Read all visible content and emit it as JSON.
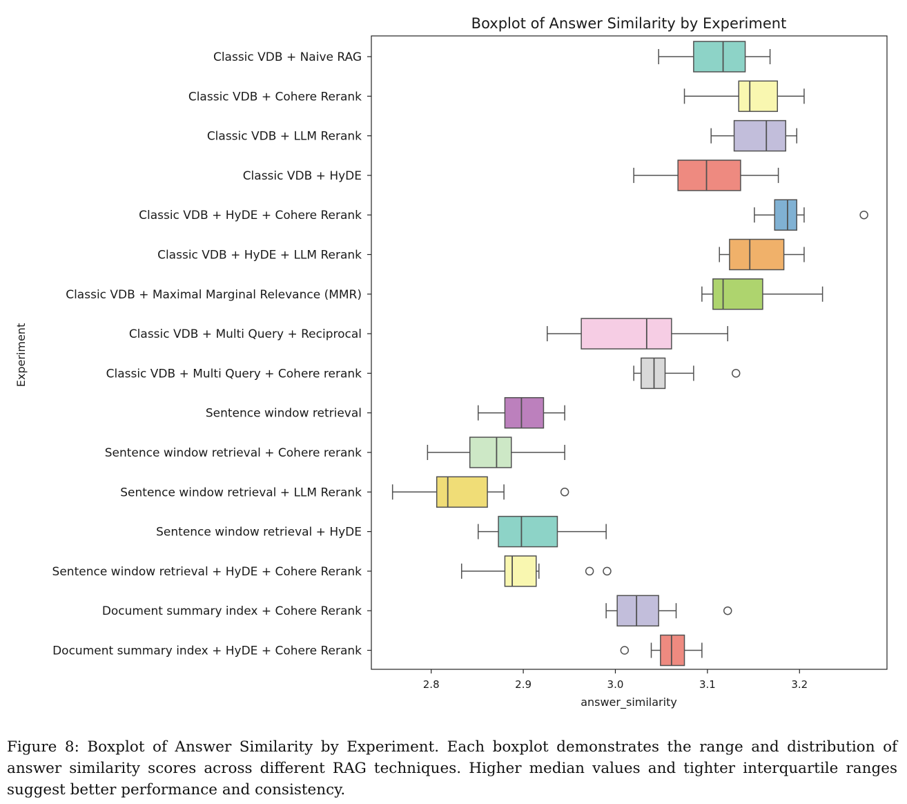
{
  "chart_data": {
    "type": "boxplot",
    "orientation": "horizontal",
    "title": "Boxplot of Answer Similarity by Experiment",
    "xlabel": "answer_similarity",
    "ylabel": "Experiment",
    "xlim": [
      2.735,
      3.295
    ],
    "xticks": [
      2.8,
      2.9,
      3.0,
      3.1,
      3.2
    ],
    "xtick_labels": [
      "2.8",
      "2.9",
      "3.0",
      "3.1",
      "3.2"
    ],
    "grid": false,
    "categories": [
      {
        "label": "Classic VDB + Naive RAG",
        "whisker_low": 3.047,
        "q1": 3.085,
        "median": 3.117,
        "q3": 3.141,
        "whisker_high": 3.168,
        "outliers": [],
        "color": "#8dd3c7"
      },
      {
        "label": "Classic VDB + Cohere Rerank",
        "whisker_low": 3.075,
        "q1": 3.134,
        "median": 3.146,
        "q3": 3.176,
        "whisker_high": 3.205,
        "outliers": [],
        "color": "#f9f7b0"
      },
      {
        "label": "Classic VDB + LLM Rerank",
        "whisker_low": 3.104,
        "q1": 3.129,
        "median": 3.164,
        "q3": 3.185,
        "whisker_high": 3.197,
        "outliers": [],
        "color": "#c2bedb"
      },
      {
        "label": "Classic VDB + HyDE",
        "whisker_low": 3.02,
        "q1": 3.068,
        "median": 3.099,
        "q3": 3.136,
        "whisker_high": 3.177,
        "outliers": [],
        "color": "#ee8a80"
      },
      {
        "label": "Classic VDB + HyDE + Cohere Rerank",
        "whisker_low": 3.151,
        "q1": 3.173,
        "median": 3.187,
        "q3": 3.197,
        "whisker_high": 3.205,
        "outliers": [
          3.27
        ],
        "color": "#80b1d3"
      },
      {
        "label": "Classic VDB + HyDE + LLM Rerank",
        "whisker_low": 3.113,
        "q1": 3.124,
        "median": 3.146,
        "q3": 3.183,
        "whisker_high": 3.205,
        "outliers": [],
        "color": "#f0b16a"
      },
      {
        "label": "Classic VDB + Maximal Marginal Relevance (MMR)",
        "whisker_low": 3.094,
        "q1": 3.106,
        "median": 3.117,
        "q3": 3.16,
        "whisker_high": 3.225,
        "outliers": [],
        "color": "#aed46e"
      },
      {
        "label": "Classic VDB + Multi Query + Reciprocal",
        "whisker_low": 2.926,
        "q1": 2.963,
        "median": 3.034,
        "q3": 3.061,
        "whisker_high": 3.122,
        "outliers": [],
        "color": "#f6cde4"
      },
      {
        "label": "Classic VDB + Multi Query + Cohere rerank",
        "whisker_low": 3.02,
        "q1": 3.028,
        "median": 3.042,
        "q3": 3.054,
        "whisker_high": 3.085,
        "outliers": [
          3.131
        ],
        "color": "#d9d9d9"
      },
      {
        "label": "Sentence window retrieval",
        "whisker_low": 2.851,
        "q1": 2.88,
        "median": 2.898,
        "q3": 2.922,
        "whisker_high": 2.945,
        "outliers": [],
        "color": "#bc80bd"
      },
      {
        "label": "Sentence window retrieval + Cohere rerank",
        "whisker_low": 2.796,
        "q1": 2.842,
        "median": 2.871,
        "q3": 2.887,
        "whisker_high": 2.945,
        "outliers": [],
        "color": "#cde8c6"
      },
      {
        "label": "Sentence window retrieval + LLM Rerank",
        "whisker_low": 2.758,
        "q1": 2.806,
        "median": 2.818,
        "q3": 2.861,
        "whisker_high": 2.879,
        "outliers": [
          2.945
        ],
        "color": "#f0dd77"
      },
      {
        "label": "Sentence window retrieval + HyDE",
        "whisker_low": 2.851,
        "q1": 2.873,
        "median": 2.898,
        "q3": 2.937,
        "whisker_high": 2.99,
        "outliers": [],
        "color": "#8dd3c7"
      },
      {
        "label": "Sentence window retrieval + HyDE + Cohere Rerank",
        "whisker_low": 2.833,
        "q1": 2.88,
        "median": 2.888,
        "q3": 2.914,
        "whisker_high": 2.917,
        "outliers": [
          2.972,
          2.991
        ],
        "color": "#f9f7b0"
      },
      {
        "label": "Document summary index + Cohere Rerank",
        "whisker_low": 2.99,
        "q1": 3.002,
        "median": 3.023,
        "q3": 3.047,
        "whisker_high": 3.066,
        "outliers": [
          3.122
        ],
        "color": "#c2bedb"
      },
      {
        "label": "Document summary index + HyDE + Cohere Rerank",
        "whisker_low": 3.039,
        "q1": 3.049,
        "median": 3.061,
        "q3": 3.075,
        "whisker_high": 3.094,
        "outliers": [
          3.01
        ],
        "color": "#ee8a80"
      }
    ]
  },
  "caption": "Figure 8: Boxplot of Answer Similarity by Experiment. Each boxplot demonstrates the range and distribution of answer similarity scores across different RAG techniques. Higher median values and tighter interquartile ranges suggest better performance and consistency."
}
